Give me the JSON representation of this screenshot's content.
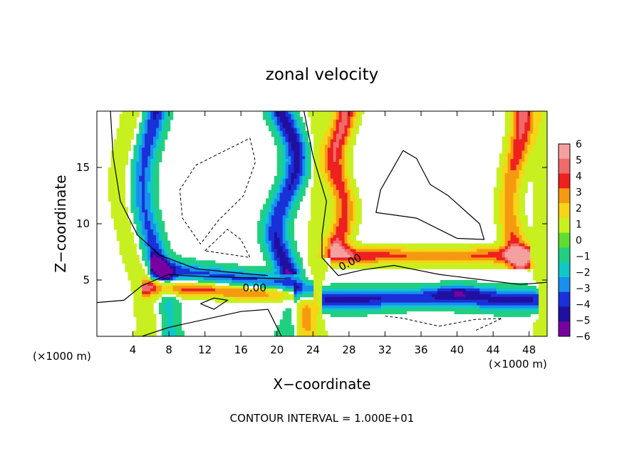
{
  "chart_data": {
    "type": "heatmap",
    "title": "zonal velocity",
    "xlabel": "X−coordinate",
    "ylabel": "Z−coordinate",
    "x_unit_left": "(×1000 m)",
    "x_unit_right": "(×1000 m)",
    "xlim": [
      0,
      50
    ],
    "ylim": [
      0,
      20
    ],
    "x_ticks": [
      4,
      8,
      12,
      16,
      20,
      24,
      28,
      32,
      36,
      40,
      44,
      48
    ],
    "y_ticks": [
      5,
      10,
      15
    ],
    "colorbar": {
      "levels": [
        6,
        5,
        4,
        3,
        2,
        1,
        0,
        -1,
        -2,
        -3,
        -4,
        -5,
        -6
      ],
      "labels": [
        "6",
        "5",
        "4",
        "3",
        "2",
        "1",
        "0",
        "−1",
        "−2",
        "−3",
        "−4",
        "−5",
        "−6"
      ],
      "colors": [
        "#f5a0a0",
        "#f06a6a",
        "#ee2020",
        "#f59a10",
        "#f5d515",
        "#c8f020",
        "#60dd30",
        "#20d080",
        "#10c8c8",
        "#1890ee",
        "#1a30d8",
        "#2010a0",
        "#7800a0"
      ]
    },
    "contour_labels": [
      "0.00",
      "0.00"
    ],
    "footer": "CONTOUR INTERVAL = 1.000E+01",
    "grid": false
  }
}
